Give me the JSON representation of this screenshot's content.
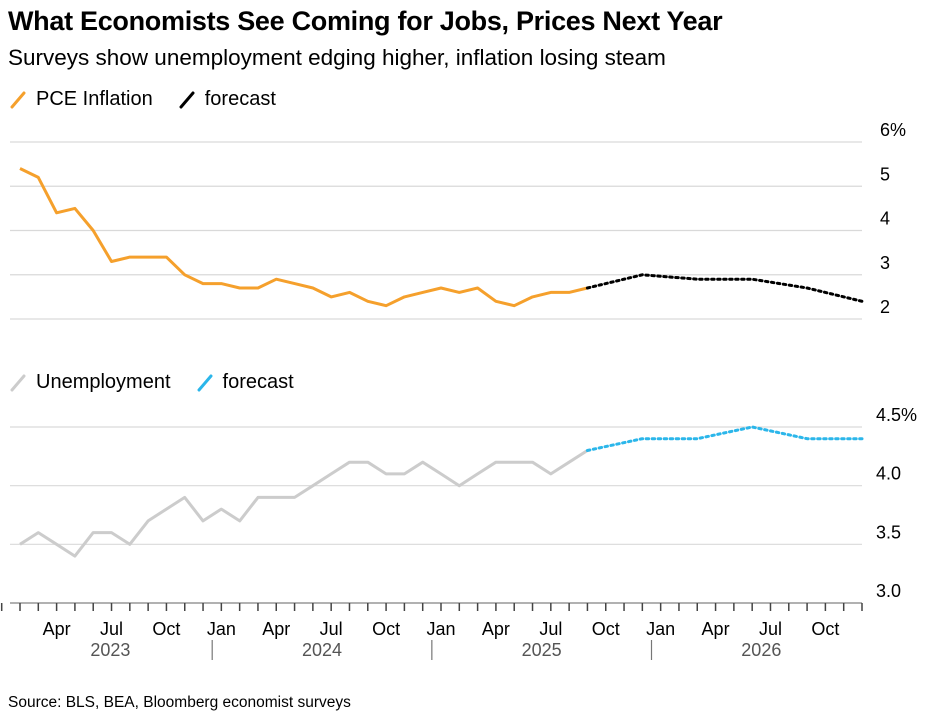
{
  "header": {
    "title": "What Economists See Coming for Jobs, Prices Next Year",
    "subtitle": "Surveys show unemployment edging higher, inflation losing steam"
  },
  "source": "Source: BLS, BEA, Bloomberg economist surveys",
  "colors": {
    "pce": "#f5a02c",
    "pce_forecast": "#000000",
    "unemployment": "#cccccc",
    "unemployment_forecast": "#2bb6ea",
    "grid": "#d9d9d9"
  },
  "chart_data": [
    {
      "type": "line",
      "title": "",
      "legend": [
        "PCE Inflation",
        "forecast"
      ],
      "legend_placement": "top-left",
      "y_ticks": [
        "6%",
        "5",
        "4",
        "3",
        "2"
      ],
      "ylim": [
        2,
        6
      ],
      "grid": true,
      "series": [
        {
          "name": "PCE Inflation",
          "x": [
            "2023-02",
            "2023-03",
            "2023-04",
            "2023-05",
            "2023-06",
            "2023-07",
            "2023-08",
            "2023-09",
            "2023-10",
            "2023-11",
            "2023-12",
            "2024-01",
            "2024-02",
            "2024-03",
            "2024-04",
            "2024-05",
            "2024-06",
            "2024-07",
            "2024-08",
            "2024-09",
            "2024-10",
            "2024-11",
            "2024-12",
            "2025-01",
            "2025-02",
            "2025-03",
            "2025-04",
            "2025-05",
            "2025-06",
            "2025-07",
            "2025-08",
            "2025-09"
          ],
          "values": [
            5.4,
            5.2,
            4.4,
            4.5,
            4.0,
            3.3,
            3.4,
            3.4,
            3.4,
            3.0,
            2.8,
            2.8,
            2.7,
            2.7,
            2.9,
            2.8,
            2.7,
            2.5,
            2.6,
            2.4,
            2.3,
            2.5,
            2.6,
            2.7,
            2.6,
            2.7,
            2.4,
            2.3,
            2.5,
            2.6,
            2.6,
            2.7
          ]
        },
        {
          "name": "forecast",
          "x": [
            "2025-09",
            "2025-12",
            "2026-03",
            "2026-06",
            "2026-09",
            "2026-12"
          ],
          "values": [
            2.7,
            3.0,
            2.9,
            2.9,
            2.7,
            2.4
          ]
        }
      ]
    },
    {
      "type": "line",
      "title": "",
      "legend": [
        "Unemployment",
        "forecast"
      ],
      "legend_placement": "top-left",
      "y_ticks": [
        "4.5%",
        "4.0",
        "3.5",
        "3.0"
      ],
      "ylim": [
        3.0,
        4.5
      ],
      "grid": true,
      "series": [
        {
          "name": "Unemployment",
          "x": [
            "2023-02",
            "2023-03",
            "2023-04",
            "2023-05",
            "2023-06",
            "2023-07",
            "2023-08",
            "2023-09",
            "2023-10",
            "2023-11",
            "2023-12",
            "2024-01",
            "2024-02",
            "2024-03",
            "2024-04",
            "2024-05",
            "2024-06",
            "2024-07",
            "2024-08",
            "2024-09",
            "2024-10",
            "2024-11",
            "2024-12",
            "2025-01",
            "2025-02",
            "2025-03",
            "2025-04",
            "2025-05",
            "2025-06",
            "2025-07",
            "2025-08",
            "2025-09"
          ],
          "values": [
            3.5,
            3.6,
            3.5,
            3.4,
            3.6,
            3.6,
            3.5,
            3.7,
            3.8,
            3.9,
            3.7,
            3.8,
            3.7,
            3.9,
            3.9,
            3.9,
            4.0,
            4.1,
            4.2,
            4.2,
            4.1,
            4.1,
            4.2,
            4.1,
            4.0,
            4.1,
            4.2,
            4.2,
            4.2,
            4.1,
            4.2,
            4.3
          ]
        },
        {
          "name": "forecast",
          "x": [
            "2025-09",
            "2025-12",
            "2026-03",
            "2026-06",
            "2026-09",
            "2026-12"
          ],
          "values": [
            4.3,
            4.4,
            4.4,
            4.5,
            4.4,
            4.4
          ]
        }
      ]
    }
  ],
  "x_axis": {
    "month_labels": [
      {
        "label": "Apr",
        "month": "2023-04"
      },
      {
        "label": "Jul",
        "month": "2023-07"
      },
      {
        "label": "Oct",
        "month": "2023-10"
      },
      {
        "label": "Jan",
        "month": "2024-01"
      },
      {
        "label": "Apr",
        "month": "2024-04"
      },
      {
        "label": "Jul",
        "month": "2024-07"
      },
      {
        "label": "Oct",
        "month": "2024-10"
      },
      {
        "label": "Jan",
        "month": "2025-01"
      },
      {
        "label": "Apr",
        "month": "2025-04"
      },
      {
        "label": "Jul",
        "month": "2025-07"
      },
      {
        "label": "Oct",
        "month": "2025-10"
      },
      {
        "label": "Jan",
        "month": "2026-01"
      },
      {
        "label": "Apr",
        "month": "2026-04"
      },
      {
        "label": "Jul",
        "month": "2026-07"
      },
      {
        "label": "Oct",
        "month": "2026-10"
      }
    ],
    "year_labels": [
      "2023",
      "2024",
      "2025",
      "2026"
    ],
    "range": [
      "2023-01",
      "2026-12"
    ]
  }
}
